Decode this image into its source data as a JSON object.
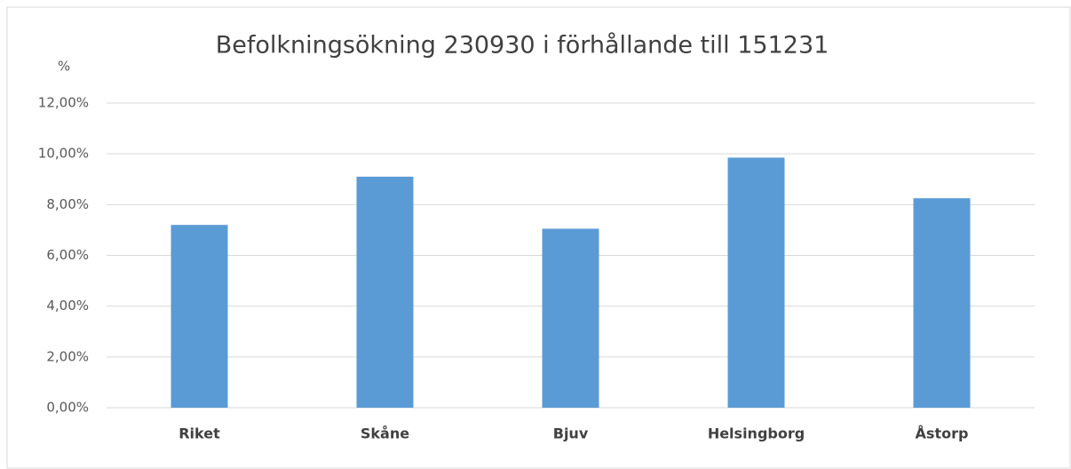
{
  "chart_data": {
    "type": "bar",
    "title": "Befolkningsökning  230930 i förhållande till 151231",
    "y_axis_label": "%",
    "categories": [
      "Riket",
      "Skåne",
      "Bjuv",
      "Helsingborg",
      "Åstorp"
    ],
    "values": [
      7.2,
      9.1,
      7.05,
      9.85,
      8.25
    ],
    "color": "#5b9bd5",
    "ylim": [
      0,
      12
    ],
    "yticks": [
      {
        "value": 0,
        "label": "0,00%"
      },
      {
        "value": 2,
        "label": "2,00%"
      },
      {
        "value": 4,
        "label": "4,00%"
      },
      {
        "value": 6,
        "label": "6,00%"
      },
      {
        "value": 8,
        "label": "8,00%"
      },
      {
        "value": 10,
        "label": "10,00%"
      },
      {
        "value": 12,
        "label": "12,00%"
      }
    ],
    "grid": true
  }
}
